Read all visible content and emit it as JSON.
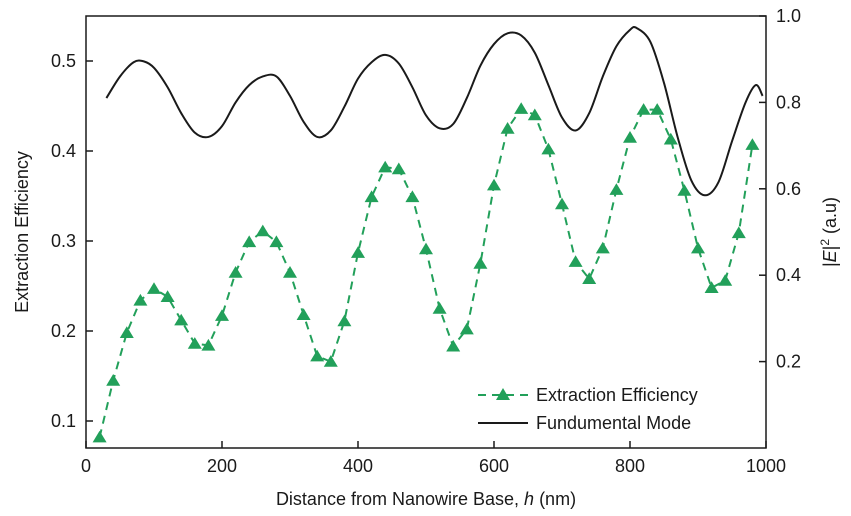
{
  "chart_data": {
    "type": "line",
    "xlabel": "Distance from Nanowire Base, ",
    "xlabel_italic": "h",
    "xlabel_unit": " (nm)",
    "ylabel_left": "Extraction Efficiency",
    "ylabel_right_prefix": "|",
    "ylabel_right_italic": "E",
    "ylabel_right_mid": "|",
    "ylabel_right_sup": "2",
    "ylabel_right_suffix": " (a.u)",
    "xlim": [
      0,
      1000
    ],
    "ylim_left": [
      0.07,
      0.55
    ],
    "ylim_right": [
      0,
      1.0
    ],
    "x_ticks": [
      "0",
      "200",
      "400",
      "600",
      "800",
      "1000"
    ],
    "y_left_ticks": [
      "0.1",
      "0.2",
      "0.3",
      "0.4",
      "0.5"
    ],
    "y_right_ticks": [
      "0.2",
      "0.4",
      "0.6",
      "0.8",
      "1.0"
    ],
    "grid": false,
    "legend_position": "bottom-right",
    "series": [
      {
        "name": "Extraction Efficiency",
        "axis": "left",
        "style": "dashed-triangle",
        "color": "#22a05a",
        "x": [
          20,
          40,
          60,
          80,
          100,
          120,
          140,
          160,
          180,
          200,
          220,
          240,
          260,
          280,
          300,
          320,
          340,
          360,
          380,
          400,
          420,
          440,
          460,
          480,
          500,
          520,
          540,
          560,
          580,
          600,
          620,
          640,
          660,
          680,
          700,
          720,
          740,
          760,
          780,
          800,
          820,
          840,
          860,
          880,
          900,
          920,
          940,
          960,
          980
        ],
        "values": [
          0.082,
          0.145,
          0.198,
          0.234,
          0.247,
          0.238,
          0.212,
          0.186,
          0.184,
          0.217,
          0.265,
          0.299,
          0.311,
          0.299,
          0.265,
          0.218,
          0.172,
          0.166,
          0.211,
          0.287,
          0.349,
          0.382,
          0.38,
          0.349,
          0.291,
          0.225,
          0.183,
          0.202,
          0.275,
          0.362,
          0.425,
          0.447,
          0.44,
          0.402,
          0.341,
          0.277,
          0.258,
          0.292,
          0.357,
          0.415,
          0.446,
          0.446,
          0.413,
          0.356,
          0.292,
          0.248,
          0.256,
          0.309,
          0.407
        ]
      },
      {
        "name": "Fundumental Mode",
        "axis": "right",
        "style": "solid",
        "color": "#1a1a1a",
        "x": [
          30,
          50,
          70,
          85,
          100,
          120,
          140,
          160,
          180,
          200,
          220,
          240,
          260,
          280,
          300,
          320,
          340,
          360,
          380,
          400,
          420,
          440,
          460,
          480,
          500,
          520,
          540,
          560,
          580,
          600,
          620,
          640,
          660,
          680,
          700,
          720,
          740,
          760,
          780,
          800,
          810,
          830,
          850,
          870,
          890,
          910,
          930,
          950,
          970,
          985,
          995
        ],
        "values": [
          0.81,
          0.86,
          0.893,
          0.895,
          0.88,
          0.835,
          0.775,
          0.73,
          0.72,
          0.745,
          0.8,
          0.84,
          0.86,
          0.86,
          0.815,
          0.755,
          0.72,
          0.735,
          0.79,
          0.855,
          0.893,
          0.91,
          0.89,
          0.835,
          0.77,
          0.74,
          0.75,
          0.81,
          0.885,
          0.935,
          0.96,
          0.955,
          0.915,
          0.84,
          0.765,
          0.735,
          0.775,
          0.86,
          0.93,
          0.968,
          0.972,
          0.94,
          0.845,
          0.72,
          0.62,
          0.585,
          0.615,
          0.71,
          0.8,
          0.84,
          0.815
        ]
      }
    ]
  }
}
